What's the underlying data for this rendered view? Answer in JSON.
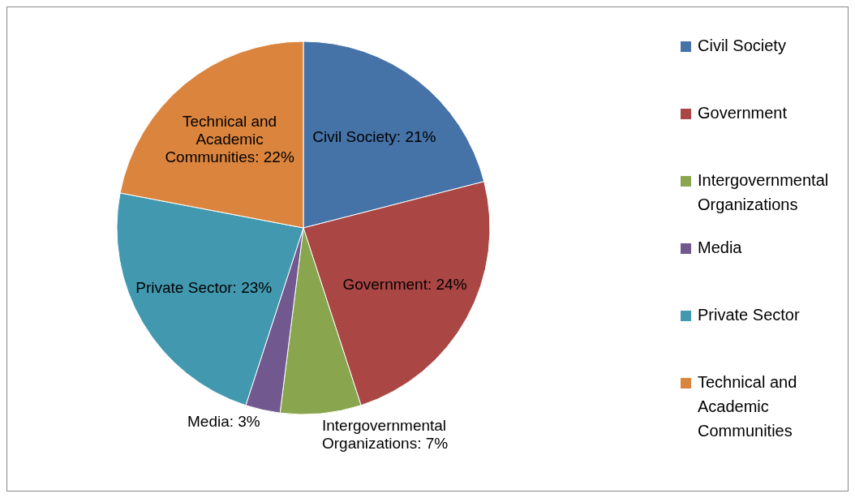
{
  "chart_data": {
    "type": "pie",
    "categories": [
      "Civil Society",
      "Government",
      "Intergovernmental Organizations",
      "Media",
      "Private Sector",
      "Technical and Academic Communities"
    ],
    "values": [
      21,
      24,
      7,
      3,
      23,
      22
    ],
    "colors": [
      "#4572a7",
      "#aa4643",
      "#89a54e",
      "#71588f",
      "#4198af",
      "#db843d"
    ],
    "value_labels": [
      "Civil Society: 21%",
      "Government: 24%",
      "Intergovernmental Organizations: 7%",
      "Media: 3%",
      "Private Sector: 23%",
      "Technical and Academic Communities: 22%"
    ],
    "legend": "right"
  }
}
